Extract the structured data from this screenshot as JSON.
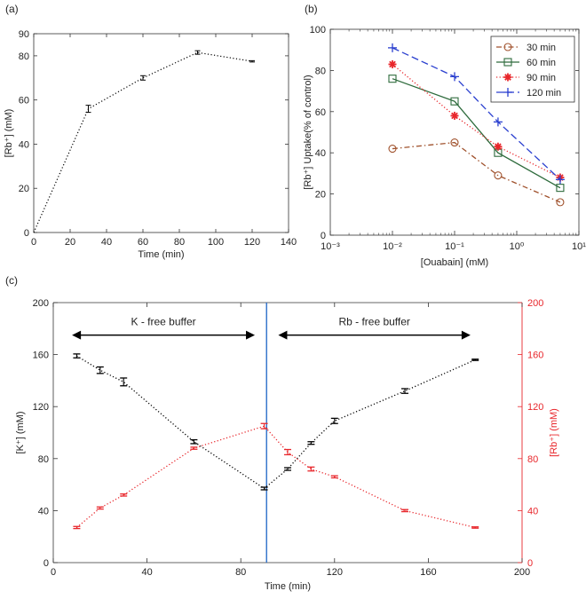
{
  "chart_data": [
    {
      "panel_label": "(a)",
      "type": "line",
      "xlabel": "Time (min)",
      "ylabel": "[Rb⁺] (mM)",
      "xlim": [
        0,
        140
      ],
      "ylim": [
        0,
        90
      ],
      "xticks": [
        0,
        20,
        40,
        60,
        80,
        100,
        120,
        140
      ],
      "yticks": [
        0,
        20,
        40,
        60,
        80,
        90
      ],
      "grid": false,
      "series": [
        {
          "x": [
            0,
            30,
            60,
            90,
            120
          ],
          "y": [
            0,
            56,
            70,
            81.5,
            77.5
          ],
          "err": [
            0,
            1.6,
            1.0,
            0.8,
            0.3
          ],
          "color": "#000000",
          "line_style": "dotted"
        }
      ]
    },
    {
      "panel_label": "(b)",
      "type": "line",
      "xlabel": "[Ouabain] (mM)",
      "ylabel": "[Rb⁺] Uptake(% of control)",
      "x_scale": "log",
      "xlim": [
        0.001,
        10
      ],
      "ylim": [
        0,
        100
      ],
      "xticks": [
        "10⁻³",
        "10⁻²",
        "10⁻¹",
        "10⁰",
        "10¹"
      ],
      "yticks": [
        0,
        20,
        40,
        60,
        80,
        100
      ],
      "legend_position": "top-right",
      "grid": false,
      "series": [
        {
          "name": "30 min",
          "x": [
            0.01,
            0.1,
            0.5,
            5
          ],
          "y": [
            42,
            45,
            29,
            16
          ],
          "color": "#a0522d",
          "line_style": "dash-dot",
          "marker": "circle"
        },
        {
          "name": "60 min",
          "x": [
            0.01,
            0.1,
            0.5,
            5
          ],
          "y": [
            76,
            65,
            40,
            23
          ],
          "color": "#2e6b3c",
          "line_style": "solid",
          "marker": "square"
        },
        {
          "name": "90 min",
          "x": [
            0.01,
            0.1,
            0.5,
            5
          ],
          "y": [
            83,
            58,
            43,
            28
          ],
          "color": "#e8262b",
          "line_style": "dotted",
          "marker": "star"
        },
        {
          "name": "120 min",
          "x": [
            0.01,
            0.1,
            0.5,
            5
          ],
          "y": [
            91,
            77,
            55,
            27
          ],
          "color": "#2a3fcf",
          "line_style": "dashed",
          "marker": "plus"
        }
      ]
    },
    {
      "panel_label": "(c)",
      "type": "line",
      "xlabel": "Time (min)",
      "ylabel_left": "[K⁺] (mM)",
      "ylabel_right": "[Rb⁺] (mM)",
      "xlim": [
        0,
        200
      ],
      "ylim_left": [
        0,
        200
      ],
      "ylim_right": [
        0,
        200
      ],
      "xticks": [
        0,
        40,
        80,
        120,
        160,
        200
      ],
      "yticks": [
        0,
        40,
        80,
        120,
        160,
        200
      ],
      "vertical_line_x": 91,
      "annotations": [
        {
          "text": "K - free buffer",
          "arrow_from": 8,
          "arrow_to": 86,
          "y": 175
        },
        {
          "text": "Rb - free buffer",
          "arrow_from": 96,
          "arrow_to": 178,
          "y": 175
        }
      ],
      "series": [
        {
          "name": "[K⁺]",
          "axis": "left",
          "color": "#000000",
          "line_style": "dotted",
          "x": [
            10,
            20,
            30,
            60,
            90,
            100,
            110,
            120,
            150,
            180
          ],
          "y": [
            159,
            148,
            139,
            93,
            57,
            72,
            92,
            109,
            132,
            156
          ],
          "err": [
            1.5,
            2.5,
            3,
            1.5,
            1,
            1,
            1,
            2,
            1.8,
            0.5
          ]
        },
        {
          "name": "[Rb⁺]",
          "axis": "right",
          "color": "#e8262b",
          "line_style": "dotted",
          "x": [
            10,
            20,
            30,
            60,
            90,
            100,
            110,
            120,
            150,
            180
          ],
          "y": [
            27,
            42,
            52,
            88,
            105,
            85,
            72,
            66,
            40,
            27
          ],
          "err": [
            0.8,
            0.8,
            0.8,
            0.8,
            2,
            2,
            1.5,
            0.8,
            0.8,
            0.5
          ]
        }
      ]
    }
  ]
}
